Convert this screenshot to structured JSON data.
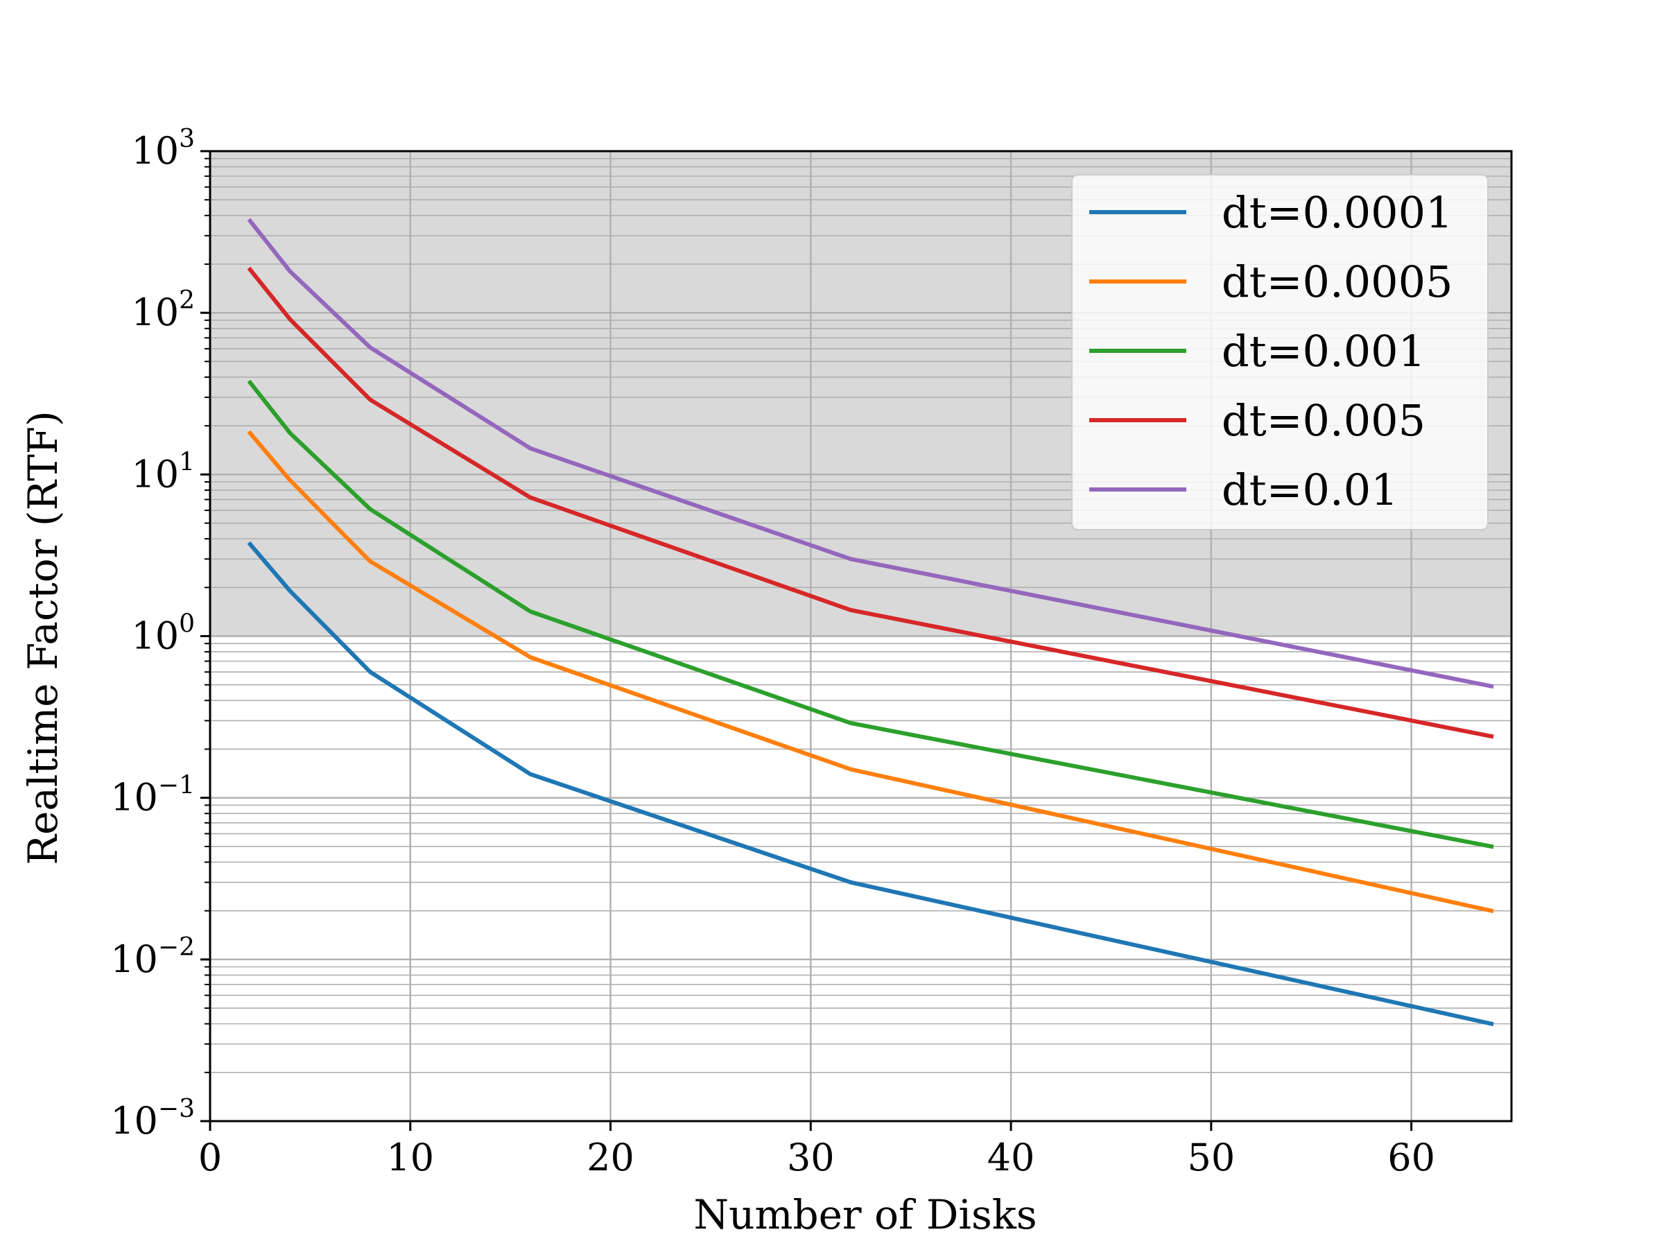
{
  "chart_data": {
    "type": "line",
    "title": "",
    "xlabel": "Number of Disks",
    "ylabel": "Realtime Factor (RTF)",
    "xlim": [
      0,
      65
    ],
    "ylim": [
      0.001,
      1000
    ],
    "yscale": "log",
    "grid": true,
    "legend_position": "top-right",
    "shaded_region": {
      "y_from": 1,
      "y_to": 1000,
      "color": "#d9d9d9"
    },
    "x_ticks": [
      "0",
      "10",
      "20",
      "30",
      "40",
      "50",
      "60"
    ],
    "y_ticks": [
      {
        "base": "10",
        "exp": "3",
        "value": 1000
      },
      {
        "base": "10",
        "exp": "2",
        "value": 100
      },
      {
        "base": "10",
        "exp": "1",
        "value": 10
      },
      {
        "base": "10",
        "exp": "0",
        "value": 1
      },
      {
        "base": "10",
        "exp": "−1",
        "value": 0.1
      },
      {
        "base": "10",
        "exp": "−2",
        "value": 0.01
      },
      {
        "base": "10",
        "exp": "−3",
        "value": 0.001
      }
    ],
    "x": [
      2,
      4,
      8,
      16,
      32,
      64
    ],
    "series": [
      {
        "name": "dt=0.0001",
        "color": "#1f77b4",
        "values": [
          3.7,
          1.9,
          0.6,
          0.14,
          0.03,
          0.004
        ]
      },
      {
        "name": "dt=0.0005",
        "color": "#ff7f0e",
        "values": [
          18,
          9.2,
          2.9,
          0.74,
          0.15,
          0.02
        ]
      },
      {
        "name": "dt=0.001",
        "color": "#2ca02c",
        "values": [
          37,
          18,
          6.1,
          1.42,
          0.29,
          0.05
        ]
      },
      {
        "name": "dt=0.005",
        "color": "#d62728",
        "values": [
          185,
          91,
          29,
          7.2,
          1.45,
          0.24
        ]
      },
      {
        "name": "dt=0.01",
        "color": "#9467bd",
        "values": [
          370,
          180,
          61,
          14.5,
          3.0,
          0.49
        ]
      }
    ]
  }
}
